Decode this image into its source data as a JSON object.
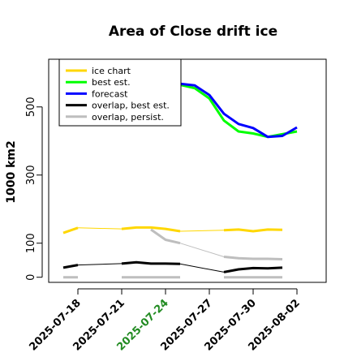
{
  "chart_data": {
    "type": "line",
    "title": "Area of Close drift ice",
    "xlabel": "",
    "ylabel": "1000 km2",
    "ylim": [
      -15,
      640
    ],
    "xlim": [
      "2025-07-16",
      "2025-08-04"
    ],
    "grid": false,
    "legend_position": "top-left",
    "y_ticks": [
      0,
      100,
      300,
      500
    ],
    "x_ticks": [
      {
        "date": "2025-07-18",
        "label": "2025-07-18",
        "color": "#000000"
      },
      {
        "date": "2025-07-21",
        "label": "2025-07-21",
        "color": "#000000"
      },
      {
        "date": "2025-07-24",
        "label": "2025-07-24",
        "color": "#228b22"
      },
      {
        "date": "2025-07-27",
        "label": "2025-07-27",
        "color": "#000000"
      },
      {
        "date": "2025-07-30",
        "label": "2025-07-30",
        "color": "#000000"
      },
      {
        "date": "2025-08-02",
        "label": "2025-08-02",
        "color": "#000000"
      }
    ],
    "series": [
      {
        "name": "ice chart",
        "color": "#ffd700",
        "segments": [
          {
            "x": [
              "2025-07-17",
              "2025-07-18"
            ],
            "y": [
              130,
              145
            ],
            "width": 3
          },
          {
            "x": [
              "2025-07-18",
              "2025-07-21"
            ],
            "y": [
              145,
              142
            ],
            "width": 1
          },
          {
            "x": [
              "2025-07-21",
              "2025-07-22",
              "2025-07-23",
              "2025-07-24",
              "2025-07-25"
            ],
            "y": [
              142,
              146,
              146,
              142,
              135
            ],
            "width": 3
          },
          {
            "x": [
              "2025-07-25",
              "2025-07-28"
            ],
            "y": [
              135,
              138
            ],
            "width": 1
          },
          {
            "x": [
              "2025-07-28",
              "2025-07-29",
              "2025-07-30",
              "2025-07-31",
              "2025-08-01"
            ],
            "y": [
              138,
              140,
              135,
              140,
              139
            ],
            "width": 3
          }
        ]
      },
      {
        "name": "best est.",
        "color": "#00ff00",
        "segments": [
          {
            "x": [
              "2025-07-24",
              "2025-07-25",
              "2025-07-26",
              "2025-07-27",
              "2025-07-28",
              "2025-07-29",
              "2025-07-30",
              "2025-07-31",
              "2025-08-01",
              "2025-08-02"
            ],
            "y": [
              573,
              565,
              555,
              525,
              460,
              428,
              422,
              412,
              420,
              428
            ],
            "width": 3
          }
        ]
      },
      {
        "name": "forecast",
        "color": "#0000ff",
        "segments": [
          {
            "x": [
              "2025-07-24",
              "2025-07-25",
              "2025-07-26",
              "2025-07-27",
              "2025-07-28",
              "2025-07-29",
              "2025-07-30",
              "2025-07-31",
              "2025-08-01",
              "2025-08-02"
            ],
            "y": [
              576,
              568,
              563,
              535,
              480,
              450,
              438,
              412,
              415,
              440
            ],
            "width": 3
          }
        ]
      },
      {
        "name": "overlap, best est.",
        "color": "#000000",
        "segments": [
          {
            "x": [
              "2025-07-17",
              "2025-07-18"
            ],
            "y": [
              28,
              36
            ],
            "width": 3
          },
          {
            "x": [
              "2025-07-18",
              "2025-07-21"
            ],
            "y": [
              36,
              40
            ],
            "width": 1
          },
          {
            "x": [
              "2025-07-21",
              "2025-07-22",
              "2025-07-23",
              "2025-07-24",
              "2025-07-25"
            ],
            "y": [
              40,
              44,
              40,
              40,
              39
            ],
            "width": 3
          },
          {
            "x": [
              "2025-07-25",
              "2025-07-28"
            ],
            "y": [
              39,
              15
            ],
            "width": 1
          },
          {
            "x": [
              "2025-07-28",
              "2025-07-29",
              "2025-07-30",
              "2025-07-31",
              "2025-08-01"
            ],
            "y": [
              15,
              23,
              27,
              26,
              28
            ],
            "width": 3
          }
        ]
      },
      {
        "name": "overlap, persist.",
        "color": "#bebebe",
        "segments": [
          {
            "x": [
              "2025-07-17",
              "2025-07-18"
            ],
            "y": [
              0,
              0
            ],
            "width": 3
          },
          {
            "x": [
              "2025-07-21",
              "2025-07-22",
              "2025-07-23",
              "2025-07-24",
              "2025-07-25"
            ],
            "y": [
              0,
              0,
              0,
              0,
              0
            ],
            "width": 3
          },
          {
            "x": [
              "2025-07-23",
              "2025-07-24",
              "2025-07-25"
            ],
            "y": [
              140,
              110,
              100
            ],
            "width": 3
          },
          {
            "x": [
              "2025-07-25",
              "2025-07-28"
            ],
            "y": [
              100,
              60
            ],
            "width": 1
          },
          {
            "x": [
              "2025-07-28",
              "2025-07-29",
              "2025-07-30",
              "2025-07-31",
              "2025-08-01"
            ],
            "y": [
              60,
              56,
              54,
              54,
              53
            ],
            "width": 3
          },
          {
            "x": [
              "2025-07-28",
              "2025-07-29",
              "2025-07-30",
              "2025-07-31",
              "2025-08-01"
            ],
            "y": [
              0,
              0,
              0,
              0,
              0
            ],
            "width": 3
          }
        ]
      }
    ]
  }
}
